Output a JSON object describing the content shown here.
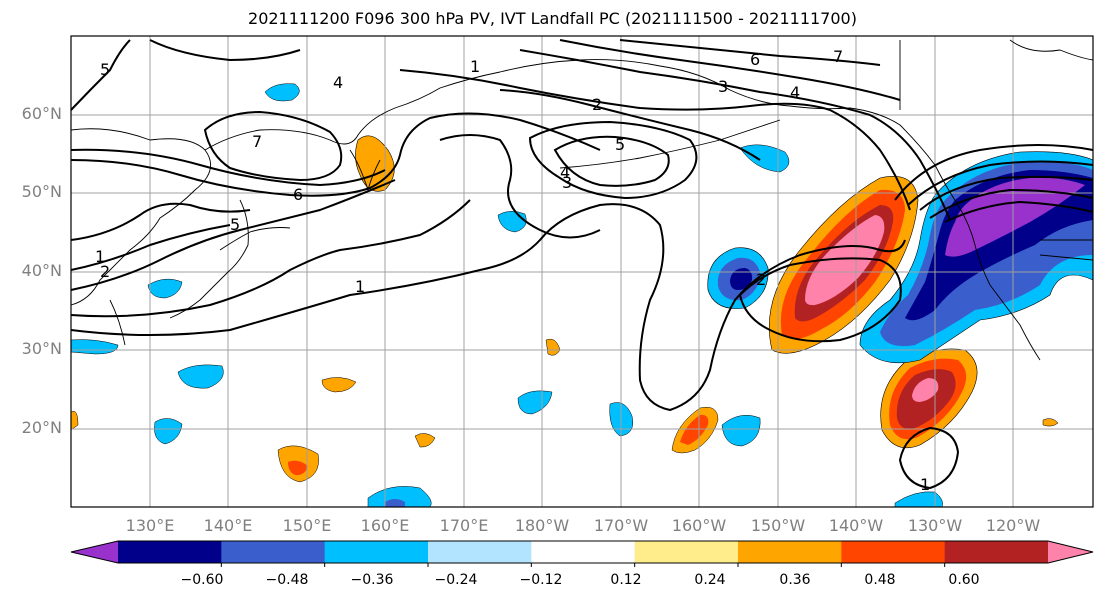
{
  "title": "2021111200 F096 300 hPa PV, IVT Landfall PC (2021111500 - 2021111700)",
  "lat_labels": [
    "60°N",
    "50°N",
    "40°N",
    "30°N",
    "20°N"
  ],
  "lon_labels": [
    "130°E",
    "140°E",
    "150°E",
    "160°E",
    "170°E",
    "180°W",
    "170°W",
    "160°W",
    "150°W",
    "140°W",
    "130°W",
    "120°W"
  ],
  "contour_labels": [
    "1",
    "2",
    "3",
    "4",
    "5",
    "6",
    "7"
  ],
  "colorbar": {
    "tick_labels": [
      "−0.60",
      "−0.48",
      "−0.36",
      "−0.24",
      "−0.12",
      "0.12",
      "0.24",
      "0.36",
      "0.48",
      "0.60"
    ],
    "colors": [
      "#9932cc",
      "#00008b",
      "#3a5fcd",
      "#00bfff",
      "#b2e3ff",
      "#ffffff",
      "#ffec8b",
      "#ffa500",
      "#ff4500",
      "#b22222",
      "#ff82ab"
    ]
  }
}
